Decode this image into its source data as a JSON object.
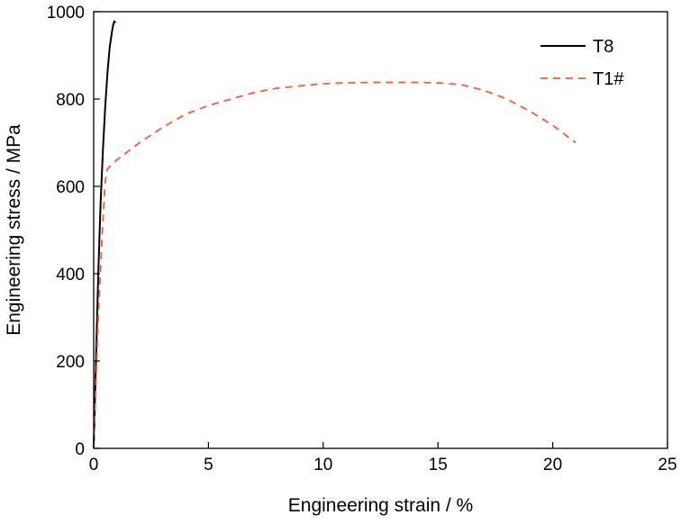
{
  "chart_data": {
    "type": "line",
    "title": "",
    "xlabel": "Engineering strain / %",
    "ylabel": "Engineering stress / MPa",
    "xlim": [
      0,
      25
    ],
    "ylim": [
      0,
      1000
    ],
    "xticks": [
      0,
      5,
      10,
      15,
      20,
      25
    ],
    "yticks": [
      0,
      200,
      400,
      600,
      800,
      1000
    ],
    "grid": false,
    "legend_position": "top-right",
    "series": [
      {
        "name": "T8",
        "color": "#000000",
        "dash": "solid",
        "points": [
          [
            0,
            0
          ],
          [
            0.1,
            200
          ],
          [
            0.2,
            400
          ],
          [
            0.3,
            560
          ],
          [
            0.4,
            680
          ],
          [
            0.5,
            780
          ],
          [
            0.6,
            860
          ],
          [
            0.7,
            920
          ],
          [
            0.8,
            955
          ],
          [
            0.85,
            970
          ],
          [
            0.9,
            978
          ],
          [
            0.95,
            975
          ]
        ]
      },
      {
        "name": "T1#",
        "color": "#e8603c",
        "dash": "dashed",
        "points": [
          [
            0,
            0
          ],
          [
            0.1,
            150
          ],
          [
            0.2,
            300
          ],
          [
            0.35,
            470
          ],
          [
            0.5,
            610
          ],
          [
            0.6,
            640
          ],
          [
            1,
            660
          ],
          [
            2,
            700
          ],
          [
            3,
            735
          ],
          [
            4,
            765
          ],
          [
            5,
            785
          ],
          [
            6,
            800
          ],
          [
            7,
            815
          ],
          [
            8,
            825
          ],
          [
            9,
            830
          ],
          [
            10,
            835
          ],
          [
            11,
            837
          ],
          [
            12,
            838
          ],
          [
            13,
            838
          ],
          [
            14,
            838
          ],
          [
            15,
            837
          ],
          [
            16,
            833
          ],
          [
            17,
            820
          ],
          [
            18,
            800
          ],
          [
            19,
            772
          ],
          [
            20,
            740
          ],
          [
            21,
            700
          ]
        ]
      }
    ]
  }
}
